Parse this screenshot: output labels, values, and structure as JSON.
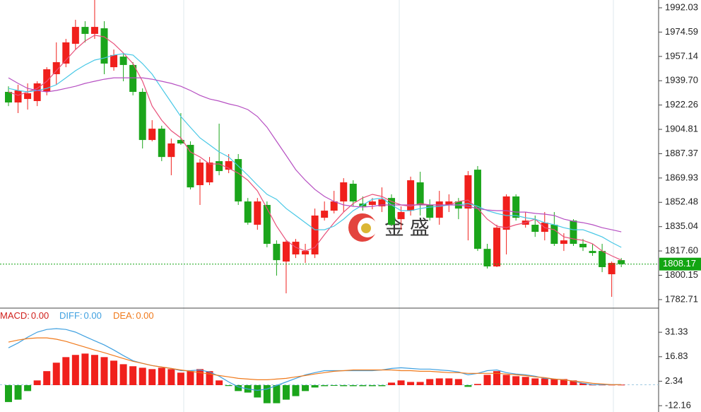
{
  "chart_data": [
    {
      "type": "candlestick",
      "ylim": [
        1777.1,
        1997.6
      ],
      "yticks": [
        1992.03,
        1974.59,
        1957.14,
        {
          "value": 1939.7,
          "label": "1939.70"
        },
        1922.26,
        1904.81,
        1887.37,
        1869.93,
        1852.48,
        1835.04,
        {
          "value": 1817.6,
          "label": "1817.60"
        },
        1800.15,
        1782.71
      ],
      "categories": [
        null,
        null,
        null,
        null,
        null,
        null,
        null,
        null,
        null,
        null,
        null,
        null,
        null,
        null,
        null,
        null,
        null,
        null,
        null,
        null,
        null,
        null,
        null,
        null,
        null,
        null,
        null,
        null,
        null,
        null,
        null,
        null,
        null,
        null,
        null,
        null,
        null,
        null,
        null,
        null,
        null,
        null,
        null,
        null,
        null,
        null,
        null,
        null,
        null,
        null,
        null,
        null,
        null,
        null,
        null,
        null,
        null,
        null,
        null,
        null,
        null,
        null,
        null,
        null,
        null
      ],
      "open": [
        1931.7,
        1924.1,
        1926.6,
        1925.1,
        1931.7,
        1944.4,
        1952.0,
        1966.2,
        1978.3,
        1973.3,
        1977.3,
        1949.4,
        1957.0,
        1951.0,
        1931.7,
        1897.2,
        1905.3,
        1885.0,
        1897.2,
        1893.7,
        1864.8,
        1866.8,
        1882.0,
        1875.9,
        1883.5,
        1853.1,
        1836.4,
        1850.6,
        1822.7,
        1810.0,
        1815.1,
        1815.1,
        1815.1,
        1841.4,
        1846.5,
        1853.1,
        1865.8,
        1851.6,
        1850.6,
        1849.6,
        1855.6,
        1840.4,
        1846.5,
        1866.8,
        1850.6,
        1841.4,
        1850.6,
        1853.1,
        1848.0,
        1875.9,
        1819.1,
        1806.5,
        1832.8,
        1856.7,
        1836.4,
        1836.4,
        1831.3,
        1836.4,
        1822.7,
        1839.4,
        1822.7,
        1817.6,
        1817.6,
        1800.9,
        1811.0
      ],
      "high": [
        1935.7,
        1936.8,
        1937.8,
        1939.3,
        1949.4,
        1967.2,
        1969.7,
        1983.4,
        1982.4,
        1997.6,
        1982.4,
        1962.1,
        1959.6,
        1953.0,
        1934.2,
        1911.4,
        1907.4,
        1898.2,
        1916.5,
        1896.2,
        1883.5,
        1885.0,
        1908.9,
        1887.1,
        1887.1,
        1855.6,
        1855.6,
        1853.1,
        1825.2,
        1825.2,
        1826.2,
        1822.7,
        1848.0,
        1853.1,
        1860.7,
        1869.8,
        1868.3,
        1856.7,
        1855.6,
        1863.2,
        1858.2,
        1849.6,
        1870.9,
        1874.4,
        1854.6,
        1860.7,
        1858.2,
        1855.6,
        1874.9,
        1878.5,
        1822.7,
        1836.4,
        1858.2,
        1858.2,
        1845.5,
        1843.0,
        1845.5,
        1845.5,
        1830.3,
        1840.4,
        1826.2,
        1822.7,
        1822.7,
        1810.0,
        1812.5
      ],
      "low": [
        1921.5,
        1916.5,
        1919.0,
        1921.5,
        1929.2,
        1936.8,
        1949.4,
        1962.1,
        1967.2,
        1969.7,
        1944.4,
        1946.9,
        1939.3,
        1929.2,
        1891.1,
        1896.2,
        1882.0,
        1871.9,
        1893.7,
        1861.7,
        1850.6,
        1864.8,
        1871.9,
        1873.4,
        1850.6,
        1836.4,
        1832.8,
        1820.2,
        1799.9,
        1787.2,
        1812.5,
        1809.0,
        1812.5,
        1839.4,
        1844.5,
        1845.5,
        1849.6,
        1846.5,
        1847.5,
        1845.5,
        1835.4,
        1832.8,
        1843.0,
        1843.0,
        1839.4,
        1836.4,
        1845.5,
        1840.4,
        1825.2,
        1817.6,
        1805.0,
        1806.0,
        1815.1,
        1839.4,
        1834.3,
        1827.7,
        1825.2,
        1821.2,
        1817.6,
        1821.2,
        1817.6,
        1814.1,
        1802.4,
        1784.7,
        1806.0
      ],
      "close": [
        1924.1,
        1932.7,
        1930.7,
        1937.8,
        1947.9,
        1953.0,
        1967.2,
        1978.3,
        1973.3,
        1978.3,
        1952.0,
        1958.1,
        1951.0,
        1931.7,
        1897.2,
        1905.3,
        1885.0,
        1894.7,
        1894.7,
        1863.2,
        1881.0,
        1881.0,
        1874.9,
        1882.0,
        1853.1,
        1837.9,
        1853.1,
        1822.7,
        1811.0,
        1824.2,
        1824.2,
        1817.6,
        1843.0,
        1846.5,
        1853.1,
        1866.8,
        1853.1,
        1849.6,
        1853.1,
        1854.6,
        1836.4,
        1845.5,
        1868.3,
        1850.6,
        1841.4,
        1853.1,
        1853.1,
        1848.0,
        1871.9,
        1819.1,
        1806.5,
        1834.3,
        1856.7,
        1841.4,
        1839.4,
        1831.3,
        1837.9,
        1822.7,
        1825.2,
        1822.7,
        1820.2,
        1816.1,
        1806.0,
        1809.0,
        1808.17
      ],
      "up_color": "#f0201c",
      "down_color": "#1ba51b",
      "series": [
        {
          "color": "#e8507a",
          "values": [
            1931.7,
            1929.2,
            1931.7,
            1934.2,
            1939.3,
            1946.9,
            1954.5,
            1962.1,
            1968.2,
            1972.3,
            1971.2,
            1966.2,
            1959.6,
            1952.0,
            1939.3,
            1921.5,
            1911.4,
            1903.8,
            1898.7,
            1888.6,
            1885.0,
            1880.0,
            1880.0,
            1876.9,
            1873.4,
            1868.3,
            1860.7,
            1848.0,
            1835.4,
            1825.2,
            1820.2,
            1817.6,
            1820.2,
            1829.3,
            1837.9,
            1845.5,
            1851.6,
            1855.6,
            1858.2,
            1856.7,
            1853.1,
            1850.6,
            1849.6,
            1851.6,
            1850.6,
            1850.6,
            1850.6,
            1853.1,
            1854.1,
            1848.0,
            1840.4,
            1835.4,
            1834.3,
            1836.4,
            1837.9,
            1840.4,
            1834.3,
            1832.8,
            1827.7,
            1826.2,
            1825.2,
            1822.7,
            1817.6,
            1814.1,
            1811.0
          ]
        },
        {
          "color": "#48c8e6",
          "values": [
            1934.2,
            1932.7,
            1931.7,
            1932.7,
            1934.2,
            1936.8,
            1941.8,
            1946.9,
            1951.0,
            1954.5,
            1956.0,
            1958.1,
            1959.1,
            1958.1,
            1952.0,
            1944.4,
            1934.2,
            1924.1,
            1914.0,
            1906.3,
            1898.7,
            1893.7,
            1888.6,
            1885.0,
            1878.5,
            1871.9,
            1864.8,
            1858.2,
            1854.6,
            1848.0,
            1843.0,
            1837.9,
            1832.8,
            1832.8,
            1835.4,
            1840.4,
            1846.5,
            1850.6,
            1854.6,
            1855.6,
            1850.6,
            1846.5,
            1846.5,
            1848.0,
            1849.1,
            1849.6,
            1850.6,
            1850.6,
            1851.6,
            1849.6,
            1846.5,
            1844.5,
            1843.0,
            1843.0,
            1841.4,
            1840.4,
            1837.9,
            1836.4,
            1834.3,
            1832.8,
            1832.8,
            1830.3,
            1827.7,
            1823.7,
            1820.2
          ]
        },
        {
          "color": "#b64fc2",
          "values": [
            1941.8,
            1937.8,
            1934.2,
            1932.7,
            1931.7,
            1932.7,
            1934.2,
            1935.7,
            1937.8,
            1939.3,
            1940.8,
            1941.8,
            1941.8,
            1941.8,
            1941.8,
            1940.8,
            1939.3,
            1937.8,
            1935.7,
            1932.7,
            1929.2,
            1926.6,
            1925.1,
            1923.1,
            1921.5,
            1919.0,
            1914.0,
            1906.3,
            1896.2,
            1886.1,
            1875.9,
            1868.3,
            1861.7,
            1856.7,
            1853.1,
            1850.6,
            1849.6,
            1849.1,
            1849.6,
            1850.6,
            1850.6,
            1850.6,
            1850.6,
            1850.6,
            1850.6,
            1850.6,
            1850.6,
            1850.6,
            1849.6,
            1848.0,
            1847.0,
            1846.5,
            1846.5,
            1845.5,
            1845.5,
            1844.5,
            1844.0,
            1843.0,
            1840.4,
            1838.9,
            1837.9,
            1836.4,
            1834.3,
            1832.8,
            1831.3
          ]
        }
      ],
      "last_price": 1808.17,
      "last_price_color": "#12a512",
      "watermark": "金 盛"
    },
    {
      "type": "macd",
      "ylim": [
        -15.9,
        45.2
      ],
      "yticks": [
        31.33,
        16.83,
        2.34,
        -12.16
      ],
      "legend": [
        {
          "label": "MACD:",
          "value_label": "0.00",
          "color": "#d0201c"
        },
        {
          "label": "DIFF:",
          "value_label": "0.00",
          "color": "#3fa0e0"
        },
        {
          "label": "DEA:",
          "value_label": "0.00",
          "color": "#f07a1c"
        }
      ],
      "values": [
        -10,
        -8.6,
        -3.5,
        2.8,
        8.3,
        13.3,
        16.6,
        17.9,
        18.7,
        17.9,
        16.6,
        14.5,
        12.4,
        11.2,
        10.3,
        9.5,
        10.3,
        9.5,
        7.4,
        8.3,
        9.5,
        8.3,
        2.8,
        -0.5,
        -3.5,
        -4.4,
        -7.3,
        -10.7,
        -10.7,
        -8.6,
        -6.5,
        -3.5,
        -1.4,
        -0.6,
        -0.2,
        -0.6,
        -0.6,
        -0.6,
        -0.6,
        -0.6,
        1.5,
        2.8,
        1.9,
        1.9,
        3.6,
        4.0,
        4.0,
        3.6,
        -1.0,
        0.7,
        6.1,
        8.3,
        6.1,
        5.3,
        4.9,
        4.0,
        4.0,
        3.6,
        3.6,
        2.8,
        1.1,
        0.3,
        0.3,
        0.3,
        0.3
      ],
      "up_color": "#f0201c",
      "down_color": "#1ba51b",
      "series": [
        {
          "color": "#3fa0e0",
          "values": [
            22.1,
            25.0,
            28.4,
            31.4,
            33.0,
            33.5,
            33.0,
            31.4,
            28.8,
            26.3,
            23.8,
            20.8,
            17.5,
            14.5,
            12.9,
            11.6,
            10.7,
            9.9,
            8.6,
            8.6,
            9.0,
            7.8,
            5.3,
            1.9,
            -1.0,
            -2.3,
            -3.1,
            -2.3,
            -0.2,
            1.9,
            4.0,
            6.1,
            7.4,
            8.6,
            8.6,
            8.6,
            8.6,
            8.6,
            8.6,
            9.0,
            9.9,
            10.3,
            9.9,
            9.5,
            9.5,
            9.0,
            8.6,
            7.8,
            6.1,
            7.0,
            8.6,
            9.0,
            7.4,
            6.6,
            6.1,
            5.3,
            4.0,
            3.6,
            3.2,
            2.4,
            1.1,
            0.3,
            0.3,
            0.3,
            0.3
          ]
        },
        {
          "color": "#f07a1c",
          "values": [
            25.5,
            26.7,
            27.6,
            28.0,
            28.0,
            27.2,
            25.9,
            24.2,
            22.5,
            20.8,
            19.2,
            17.5,
            15.8,
            14.1,
            12.9,
            11.6,
            10.7,
            9.9,
            9.0,
            8.2,
            7.4,
            6.6,
            5.7,
            4.9,
            4.0,
            3.6,
            3.2,
            3.2,
            3.6,
            4.0,
            4.9,
            5.7,
            6.6,
            7.4,
            8.2,
            8.6,
            9.0,
            9.0,
            9.0,
            9.0,
            9.0,
            8.6,
            8.6,
            8.2,
            8.2,
            7.8,
            7.4,
            7.4,
            7.0,
            7.0,
            7.0,
            7.0,
            6.6,
            6.1,
            5.7,
            4.9,
            4.5,
            3.6,
            3.2,
            2.4,
            1.9,
            1.1,
            0.7,
            0.3,
            0.3
          ]
        }
      ]
    }
  ]
}
